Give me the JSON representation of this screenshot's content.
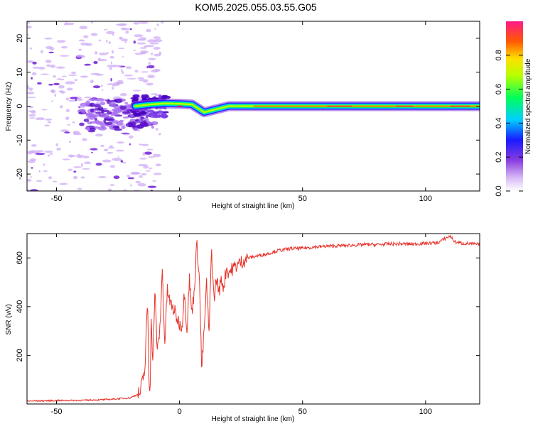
{
  "title": "KOM5.2025.055.03.55.G05",
  "chart_data": [
    {
      "type": "heatmap",
      "xlabel": "Height of straight line (km)",
      "ylabel": "Frequency (Hz)",
      "xlim": [
        -62,
        122
      ],
      "ylim": [
        -25,
        25
      ],
      "xticks": [
        -50,
        0,
        50,
        100
      ],
      "yticks": [
        -20,
        -10,
        0,
        10,
        20
      ],
      "colorbar": {
        "label": "Normalized spectral amplitude",
        "range": [
          0,
          1
        ],
        "ticks": [
          "0.0",
          "0.2",
          "0.4",
          "0.6",
          "0.8"
        ]
      },
      "ridge": [
        {
          "x": -18,
          "y": 0.0
        },
        {
          "x": -12,
          "y": 0.5
        },
        {
          "x": -6,
          "y": 0.8
        },
        {
          "x": 0,
          "y": 0.7
        },
        {
          "x": 5,
          "y": 0.5
        },
        {
          "x": 10,
          "y": -1.8
        },
        {
          "x": 15,
          "y": -0.9
        },
        {
          "x": 20,
          "y": 0.0
        },
        {
          "x": 30,
          "y": 0.0
        },
        {
          "x": 122,
          "y": 0.0
        }
      ]
    },
    {
      "type": "line",
      "xlabel": "Height of straight line (km)",
      "ylabel": "SNR (v/v)",
      "xlim": [
        -62,
        122
      ],
      "ylim": [
        0,
        700
      ],
      "xticks": [
        -50,
        0,
        50,
        100
      ],
      "yticks": [
        200,
        400,
        600
      ],
      "series": [
        {
          "color": "#e8332a",
          "x": [
            -62,
            -50,
            -40,
            -30,
            -20,
            -16,
            -14,
            -13,
            -12.5,
            -12,
            -11.5,
            -11,
            -10,
            -9,
            -8,
            -7,
            -6,
            -5,
            -4,
            -3,
            -2,
            -1,
            0,
            1,
            2,
            3,
            4,
            5,
            6,
            7,
            8,
            9,
            10,
            11,
            12,
            13,
            14,
            15,
            16,
            17,
            18,
            19,
            20,
            22,
            24,
            26,
            28,
            30,
            35,
            40,
            45,
            50,
            55,
            60,
            65,
            70,
            75,
            80,
            85,
            90,
            95,
            100,
            105,
            108,
            110,
            112,
            115,
            118,
            122
          ],
          "y": [
            12,
            14,
            15,
            18,
            25,
            45,
            150,
            440,
            120,
            40,
            380,
            150,
            460,
            210,
            310,
            550,
            240,
            470,
            420,
            400,
            380,
            350,
            330,
            320,
            460,
            300,
            520,
            370,
            470,
            660,
            540,
            140,
            300,
            500,
            280,
            640,
            420,
            520,
            460,
            510,
            480,
            560,
            540,
            560,
            575,
            590,
            600,
            605,
            615,
            630,
            638,
            640,
            645,
            648,
            650,
            652,
            655,
            655,
            657,
            658,
            657,
            660,
            662,
            680,
            690,
            665,
            660,
            658,
            655
          ]
        }
      ]
    }
  ]
}
